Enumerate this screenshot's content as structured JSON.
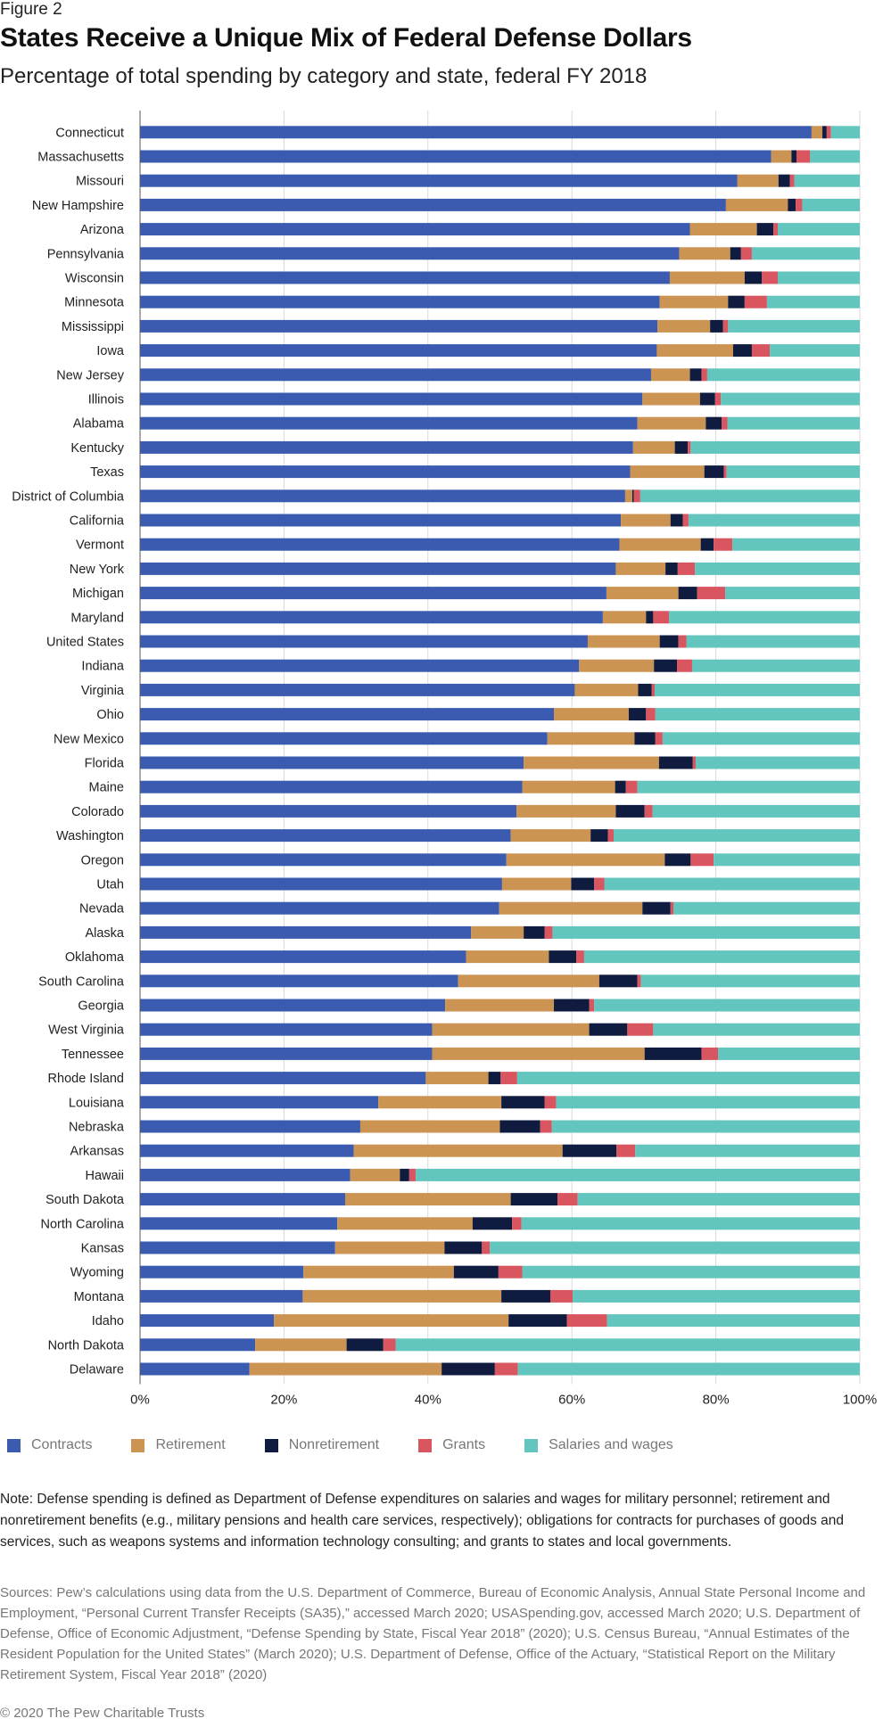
{
  "figure_label": "Figure 2",
  "title": "States Receive a Unique Mix of Federal Defense Dollars",
  "subtitle": "Percentage of total spending by category and state, federal FY 2018",
  "colors": {
    "Contracts": "#3a5bb0",
    "Retirement": "#cc9453",
    "Nonretirement": "#0f1c3f",
    "Grants": "#d95560",
    "Salaries and wages": "#62c5be"
  },
  "legend": [
    "Contracts",
    "Retirement",
    "Nonretirement",
    "Grants",
    "Salaries and wages"
  ],
  "chart_data": {
    "type": "bar",
    "orientation": "horizontal",
    "stacked": true,
    "xlim": [
      0,
      100
    ],
    "xticks": [
      "0%",
      "20%",
      "40%",
      "60%",
      "80%",
      "100%"
    ],
    "grid": true,
    "categories": [
      "Connecticut",
      "Massachusetts",
      "Missouri",
      "New Hampshire",
      "Arizona",
      "Pennsylvania",
      "Wisconsin",
      "Minnesota",
      "Mississippi",
      "Iowa",
      "New Jersey",
      "Illinois",
      "Alabama",
      "Kentucky",
      "Texas",
      "District of Columbia",
      "California",
      "Vermont",
      "New York",
      "Michigan",
      "Maryland",
      "United States",
      "Indiana",
      "Virginia",
      "Ohio",
      "New Mexico",
      "Florida",
      "Maine",
      "Colorado",
      "Washington",
      "Oregon",
      "Utah",
      "Nevada",
      "Alaska",
      "Oklahoma",
      "South Carolina",
      "Georgia",
      "West Virginia",
      "Tennessee",
      "Rhode Island",
      "Louisiana",
      "Nebraska",
      "Arkansas",
      "Hawaii",
      "South Dakota",
      "North Carolina",
      "Kansas",
      "Wyoming",
      "Montana",
      "Idaho",
      "North Dakota",
      "Delaware"
    ],
    "series": [
      {
        "name": "Contracts",
        "values": [
          93.3,
          87.7,
          83.0,
          81.4,
          76.4,
          74.9,
          73.6,
          72.2,
          71.9,
          71.8,
          71.0,
          69.8,
          69.1,
          68.5,
          68.1,
          67.4,
          66.8,
          66.6,
          66.1,
          64.8,
          64.3,
          62.2,
          61.0,
          60.4,
          57.5,
          56.6,
          53.3,
          53.1,
          52.3,
          51.5,
          50.9,
          50.3,
          49.9,
          46.0,
          45.3,
          44.2,
          42.4,
          40.6,
          40.6,
          39.7,
          33.1,
          30.6,
          29.7,
          29.2,
          28.5,
          27.4,
          27.1,
          22.7,
          22.6,
          18.6,
          16.0,
          15.2
        ]
      },
      {
        "name": "Retirement",
        "values": [
          1.5,
          2.8,
          5.7,
          8.6,
          9.3,
          7.1,
          10.4,
          9.5,
          7.3,
          10.6,
          5.4,
          8.0,
          9.5,
          5.8,
          10.3,
          1.0,
          6.9,
          11.3,
          6.9,
          10.0,
          6.0,
          10.0,
          10.4,
          8.8,
          10.4,
          12.1,
          18.8,
          12.9,
          13.8,
          11.1,
          22.0,
          9.6,
          19.9,
          7.3,
          11.5,
          19.6,
          15.1,
          21.8,
          29.5,
          8.7,
          17.1,
          19.4,
          29.0,
          6.9,
          23.0,
          18.8,
          15.2,
          20.9,
          27.6,
          32.6,
          12.7,
          26.7
        ]
      },
      {
        "name": "Nonretirement",
        "values": [
          0.6,
          0.7,
          1.6,
          1.1,
          2.3,
          1.5,
          2.4,
          2.3,
          1.8,
          2.6,
          1.6,
          2.1,
          2.2,
          1.8,
          2.7,
          0.2,
          1.7,
          1.8,
          1.7,
          2.6,
          1.0,
          2.6,
          3.2,
          1.9,
          2.4,
          2.9,
          4.7,
          1.5,
          4.0,
          2.4,
          3.6,
          3.2,
          3.9,
          2.9,
          3.8,
          5.3,
          4.9,
          5.3,
          7.9,
          1.7,
          6.0,
          5.6,
          7.5,
          1.3,
          6.5,
          5.5,
          5.2,
          6.2,
          6.8,
          8.1,
          5.1,
          7.4
        ]
      },
      {
        "name": "Grants",
        "values": [
          0.6,
          1.9,
          0.6,
          0.9,
          0.6,
          1.5,
          2.2,
          3.1,
          0.7,
          2.5,
          0.8,
          0.8,
          0.8,
          0.4,
          0.4,
          0.9,
          0.8,
          2.6,
          2.4,
          3.9,
          2.2,
          1.1,
          2.1,
          0.4,
          1.3,
          1.0,
          0.4,
          1.6,
          1.1,
          0.8,
          3.2,
          1.4,
          0.4,
          1.1,
          1.1,
          0.5,
          0.7,
          3.6,
          2.3,
          2.3,
          1.6,
          1.6,
          2.6,
          0.9,
          2.8,
          1.3,
          1.1,
          3.3,
          3.1,
          5.6,
          1.7,
          3.2
        ]
      },
      {
        "name": "Salaries and wages",
        "values": [
          4.0,
          6.9,
          9.1,
          8.0,
          11.4,
          15.0,
          11.4,
          12.9,
          18.3,
          12.5,
          21.2,
          19.3,
          18.4,
          23.5,
          18.5,
          30.5,
          23.8,
          17.7,
          22.9,
          18.7,
          26.5,
          24.1,
          23.3,
          28.5,
          28.4,
          27.4,
          22.8,
          30.9,
          28.8,
          34.2,
          20.3,
          35.5,
          25.9,
          42.7,
          38.3,
          30.4,
          36.9,
          28.7,
          19.7,
          47.6,
          42.2,
          42.8,
          31.2,
          61.7,
          39.2,
          47.0,
          51.4,
          46.9,
          39.9,
          35.1,
          64.5,
          47.5
        ]
      }
    ]
  },
  "note": "Note: Defense spending is defined as Department of Defense expenditures on salaries and wages for military personnel; retirement and nonretirement benefits (e.g., military pensions and health care services, respectively); obligations for contracts for purchases of goods and services, such as weapons systems and information technology consulting; and grants to states and local governments.",
  "sources": "Sources: Pew’s calculations using data from the U.S. Department of Commerce, Bureau of Economic Analysis, Annual State Personal Income and Employment, “Personal Current Transfer Receipts (SA35),” accessed March 2020; USASpending.gov, accessed March 2020; U.S. Department of Defense, Office of Economic Adjustment, “Defense Spending by State, Fiscal Year 2018” (2020); U.S. Census Bureau, “Annual Estimates of the Resident Population for the United States” (March 2020); U.S. Department of Defense, Office of the Actuary, “Statistical Report on the Military Retirement System, Fiscal Year 2018” (2020)",
  "copyright": "© 2020 The Pew Charitable Trusts"
}
